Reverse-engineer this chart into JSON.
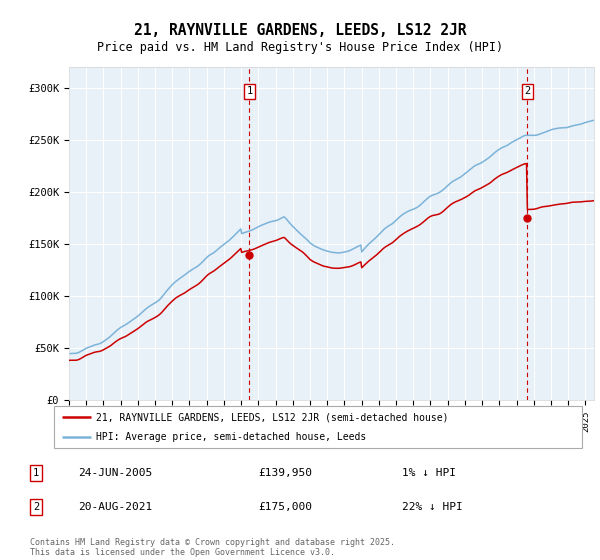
{
  "title1": "21, RAYNVILLE GARDENS, LEEDS, LS12 2JR",
  "title2": "Price paid vs. HM Land Registry's House Price Index (HPI)",
  "ylim": [
    0,
    320000
  ],
  "yticks": [
    0,
    50000,
    100000,
    150000,
    200000,
    250000,
    300000
  ],
  "ytick_labels": [
    "£0",
    "£50K",
    "£100K",
    "£150K",
    "£200K",
    "£250K",
    "£300K"
  ],
  "hpi_color": "#7bb3d9",
  "price_color": "#cc0000",
  "sale1_year": 2005.48,
  "sale1_price": 139950,
  "sale2_year": 2021.63,
  "sale2_price": 175000,
  "legend_label1": "21, RAYNVILLE GARDENS, LEEDS, LS12 2JR (semi-detached house)",
  "legend_label2": "HPI: Average price, semi-detached house, Leeds",
  "annotation1_date": "24-JUN-2005",
  "annotation1_price": "£139,950",
  "annotation1_hpi": "1% ↓ HPI",
  "annotation2_date": "20-AUG-2021",
  "annotation2_price": "£175,000",
  "annotation2_hpi": "22% ↓ HPI",
  "footer": "Contains HM Land Registry data © Crown copyright and database right 2025.\nThis data is licensed under the Open Government Licence v3.0.",
  "bg_color": "#e8f0f8",
  "outer_bg": "#ffffff"
}
